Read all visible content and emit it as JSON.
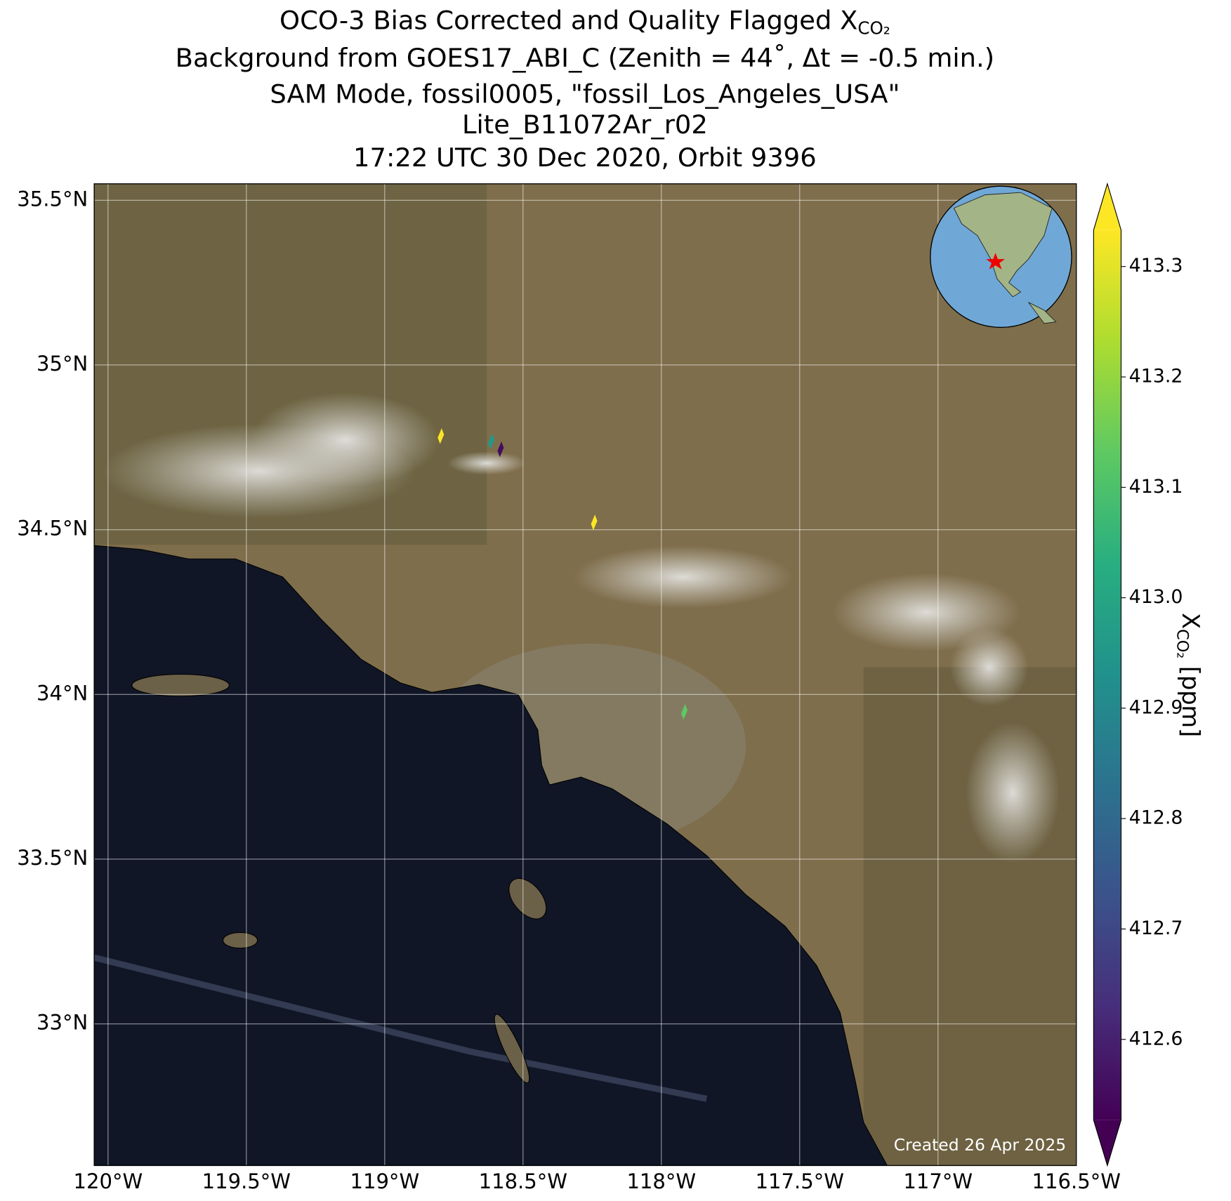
{
  "chart_data": {
    "type": "map",
    "title_lines": [
      {
        "text": "OCO-3 Bias Corrected and Quality Flagged X",
        "subscript": "CO₂"
      },
      {
        "text": "Background from GOES17_ABI_C (Zenith = 44˚, Δt = -0.5 min.)"
      },
      {
        "text": "SAM Mode, fossil0005, \"fossil_Los_Angeles_USA\""
      },
      {
        "text": "Lite_B11072Ar_r02"
      },
      {
        "text": "17:22 UTC 30 Dec 2020, Orbit 9396"
      }
    ],
    "xlim": [
      -120.05,
      -116.5
    ],
    "ylim": [
      32.57,
      35.55
    ],
    "xticks": [
      {
        "value": -120,
        "label": "120°W"
      },
      {
        "value": -119.5,
        "label": "119.5°W"
      },
      {
        "value": -119,
        "label": "119°W"
      },
      {
        "value": -118.5,
        "label": "118.5°W"
      },
      {
        "value": -118,
        "label": "118°W"
      },
      {
        "value": -117.5,
        "label": "117.5°W"
      },
      {
        "value": -117,
        "label": "117°W"
      },
      {
        "value": -116.5,
        "label": "116.5°W"
      }
    ],
    "yticks": [
      {
        "value": 33,
        "label": "33°N"
      },
      {
        "value": 33.5,
        "label": "33.5°N"
      },
      {
        "value": 34,
        "label": "34°N"
      },
      {
        "value": 34.5,
        "label": "34.5°N"
      },
      {
        "value": 35,
        "label": "35°N"
      },
      {
        "value": 35.5,
        "label": "35.5°N"
      }
    ],
    "grid": true,
    "points": {
      "lon": [
        -118.797,
        -118.615,
        -118.581,
        -118.243,
        -117.917
      ],
      "lat": [
        34.784,
        34.768,
        34.744,
        34.522,
        33.947
      ],
      "values": [
        413.35,
        412.95,
        412.55,
        413.34,
        413.13
      ]
    },
    "colorbar": {
      "colormap": "viridis",
      "clim": [
        412.527,
        413.333
      ],
      "extend": "both",
      "ticks": [
        412.6,
        412.7,
        412.8,
        412.9,
        {
          "value": 413,
          "label": "413.0"
        },
        413.1,
        413.2,
        413.3
      ],
      "label": {
        "text": "X",
        "subscript": "CO₂",
        "unit": " [ppm]"
      }
    },
    "annotation": "Created 26 Apr 2025"
  }
}
